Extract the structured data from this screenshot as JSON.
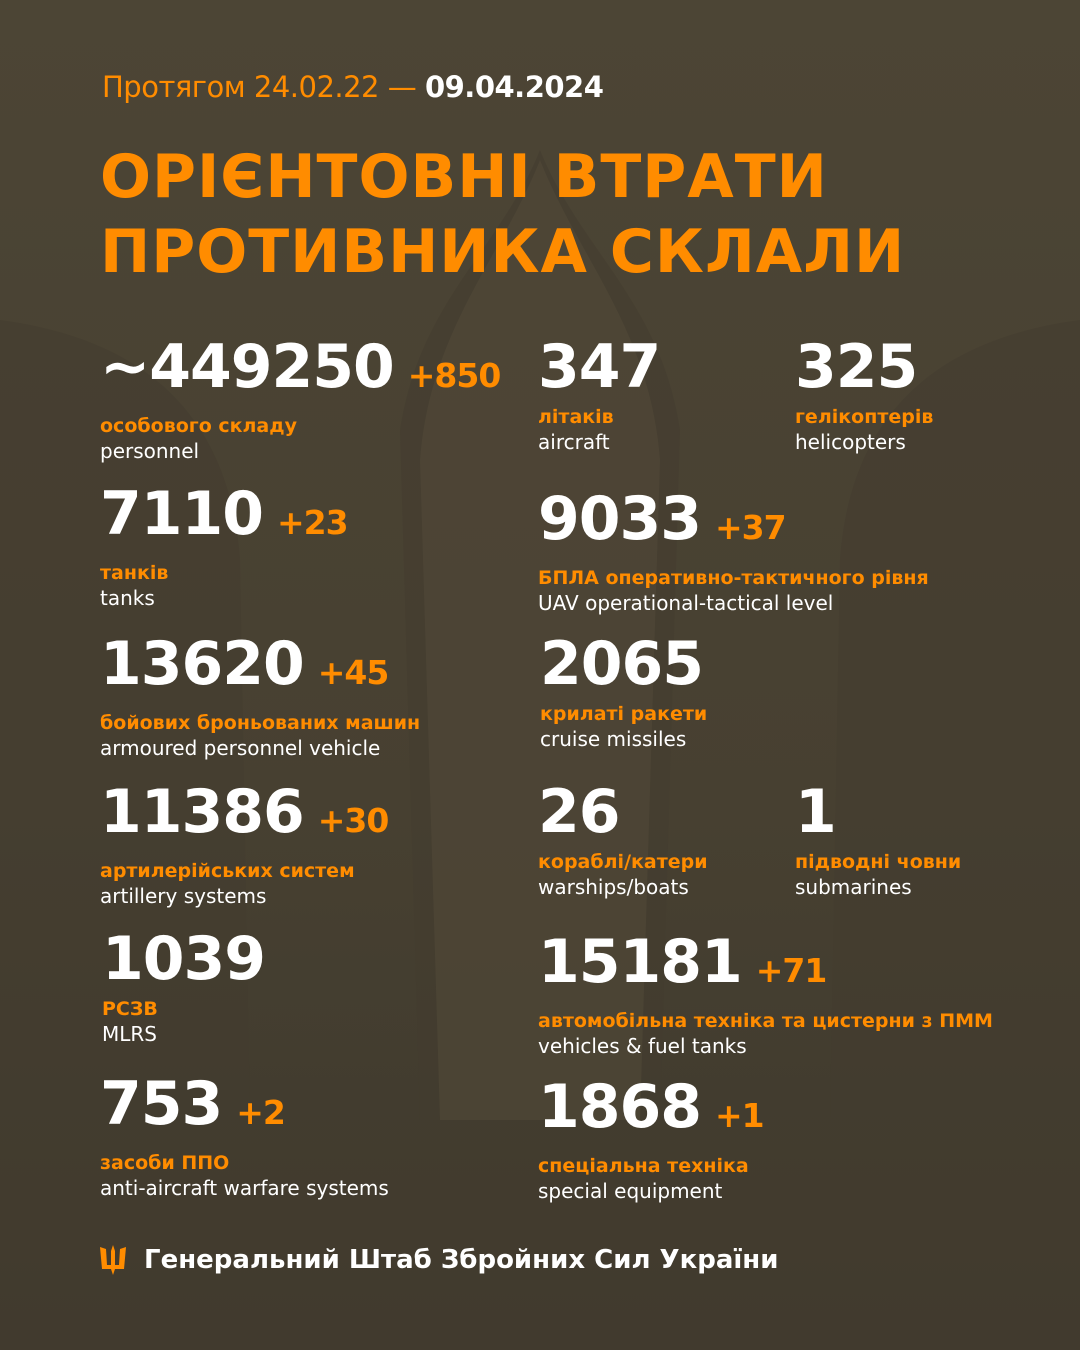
{
  "colors": {
    "accent": "#ff8c00",
    "background": "#4b4535",
    "text": "#ffffff"
  },
  "header": {
    "period_prefix": "Протягом 24.02.22 —",
    "period_end": "09.04.2024",
    "title_line1": "ОРІЄНТОВНІ ВТРАТИ",
    "title_line2": "ПРОТИВНИКА СКЛАЛИ"
  },
  "items": [
    {
      "value": "~449250",
      "delta": "+850",
      "ua": "особового складу",
      "en": "personnel"
    },
    {
      "value": "7110",
      "delta": "+23",
      "ua": "танків",
      "en": "tanks"
    },
    {
      "value": "13620",
      "delta": "+45",
      "ua": "бойових броньованих машин",
      "en": "armoured personnel vehicle"
    },
    {
      "value": "11386",
      "delta": "+30",
      "ua": "артилерійських систем",
      "en": "artillery systems"
    },
    {
      "value": "1039",
      "delta": "",
      "ua": "РСЗВ",
      "en": "MLRS"
    },
    {
      "value": "753",
      "delta": "+2",
      "ua": "засоби ППО",
      "en": "anti-aircraft warfare systems"
    },
    {
      "value": "347",
      "delta": "",
      "ua": "літаків",
      "en": "aircraft"
    },
    {
      "value": "325",
      "delta": "",
      "ua": "гелікоптерів",
      "en": "helicopters"
    },
    {
      "value": "9033",
      "delta": "+37",
      "ua": "БПЛА оперативно-тактичного рівня",
      "en": "UAV operational-tactical level"
    },
    {
      "value": "2065",
      "delta": "",
      "ua": "крилаті ракети",
      "en": "cruise missiles"
    },
    {
      "value": "26",
      "delta": "",
      "ua": "кораблі/катери",
      "en": "warships/boats"
    },
    {
      "value": "1",
      "delta": "",
      "ua": "підводні човни",
      "en": "submarines"
    },
    {
      "value": "15181",
      "delta": "+71",
      "ua": "автомобільна техніка та цистерни з ПММ",
      "en": "vehicles & fuel tanks"
    },
    {
      "value": "1868",
      "delta": "+1",
      "ua": "спеціальна техніка",
      "en": "special equipment"
    }
  ],
  "footer": {
    "icon": "trident-icon",
    "text": "Генеральний Штаб Збройних Сил України"
  }
}
